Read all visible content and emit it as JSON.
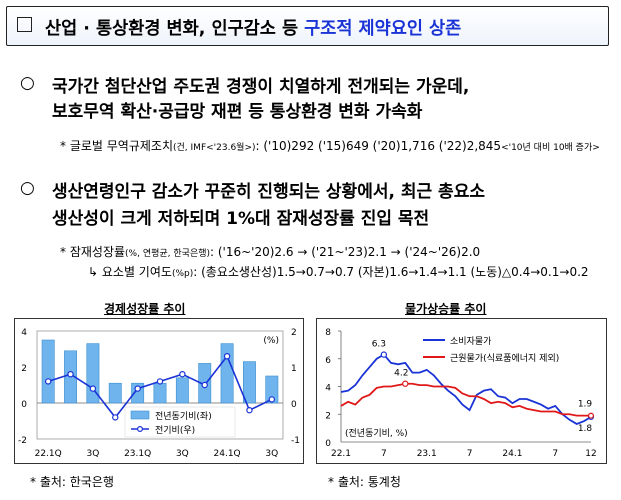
{
  "title": {
    "prefix": "산업 · 통상환경 변화, 인구감소 등 ",
    "highlight": "구조적 제약요인 상존"
  },
  "bullet1": {
    "marker": "○",
    "line1": "국가간 첨단산업 주도권 경쟁이 치열하게 전개되는 가운데,",
    "line2": "보호무역 확산·공급망 재편 등 통상환경 변화 가속화",
    "note_star": "*",
    "note_label": "글로벌 무역규제조치",
    "note_unit": "(건, IMF<'23.6월>)",
    "note_values": ": ('10)292 ('15)649 ('20)1,716 ('22)2,845",
    "note_tail": "<'10년 대비 10배 증가>"
  },
  "bullet2": {
    "marker": "○",
    "line1": "생산연령인구 감소가 꾸준히 진행되는 상황에서, 최근 총요소",
    "line2": "생산성이 크게 저하되며 1%대 잠재성장률 진입 목전",
    "note_star": "*",
    "note_label": "잠재성장률",
    "note_unit": "(%, 연평균, 한국은행)",
    "note_values": ": ('16~'20)2.6 → ('21~'23)2.1 → ('24~'26)2.0",
    "sub_note": "↳ 요소별 기여도",
    "sub_unit": "(%p)",
    "sub_values": ": (총요소생산성)1.5→0.7→0.7 (자본)1.6→1.4→1.1 (노동)△0.4→0.1→0.2"
  },
  "chart_left_title": "경제성장률 추이",
  "chart_right_title": "물가상승률 추이",
  "source_left": "* 출처: 한국은행",
  "source_right": "* 출처: 통계청",
  "chart_data": [
    {
      "type": "bar",
      "title": "경제성장률 추이",
      "left_unit": "",
      "right_unit": "(%)",
      "y_left_ticks": [
        "4",
        "2",
        "0",
        "-2"
      ],
      "y_right_ticks": [
        "2",
        "1",
        "0",
        "-1"
      ],
      "y_left_range": [
        -2,
        4
      ],
      "y_right_range": [
        -1,
        2
      ],
      "x_tick_labels": [
        "22.1Q",
        "3Q",
        "23.1Q",
        "3Q",
        "24.1Q",
        "3Q"
      ],
      "x_tick_quarters": [
        0,
        2,
        4,
        6,
        8,
        10
      ],
      "series": [
        {
          "name": "전년동기비(좌)",
          "kind": "bar",
          "axis": "left",
          "values": [
            3.5,
            2.9,
            3.3,
            1.1,
            1.1,
            1.1,
            1.4,
            2.2,
            3.3,
            2.3,
            1.5
          ]
        },
        {
          "name": "전기비(우)",
          "kind": "line",
          "axis": "right",
          "values": [
            0.6,
            0.8,
            0.4,
            -0.4,
            0.4,
            0.6,
            0.8,
            0.5,
            1.3,
            -0.2,
            0.1
          ]
        }
      ],
      "legend_position": "bottom-center"
    },
    {
      "type": "line",
      "title": "물가상승률 추이",
      "unit_label": "(전년동기비, %)",
      "y_ticks": [
        "8",
        "6",
        "4",
        "2",
        "0"
      ],
      "y_range": [
        0,
        8
      ],
      "x_tick_labels": [
        "22.1",
        "7",
        "23.1",
        "7",
        "24.1",
        "7",
        "12"
      ],
      "x_tick_months": [
        0,
        6,
        12,
        18,
        24,
        30,
        35
      ],
      "annotations": [
        "6.3",
        "4.2",
        "1.9",
        "1.8"
      ],
      "series": [
        {
          "name": "소비자물가",
          "color": "#1a33d6",
          "values": [
            3.6,
            3.7,
            4.1,
            4.8,
            5.4,
            6.0,
            6.3,
            5.7,
            5.6,
            5.7,
            5.0,
            5.0,
            5.2,
            4.8,
            4.2,
            3.7,
            3.3,
            2.7,
            2.3,
            3.4,
            3.7,
            3.8,
            3.3,
            3.2,
            2.8,
            3.1,
            3.1,
            2.9,
            2.7,
            2.4,
            2.6,
            2.0,
            1.6,
            1.3,
            1.5,
            1.8
          ]
        },
        {
          "name": "근원물가(식료품에너지 제외)",
          "color": "#e01818",
          "values": [
            2.6,
            2.9,
            2.7,
            3.2,
            3.4,
            3.9,
            4.0,
            4.0,
            4.1,
            4.2,
            4.2,
            4.1,
            4.1,
            4.0,
            4.0,
            4.0,
            3.9,
            3.5,
            3.3,
            3.3,
            3.1,
            2.8,
            2.9,
            2.8,
            2.5,
            2.6,
            2.4,
            2.3,
            2.2,
            2.2,
            2.2,
            2.0,
            2.0,
            1.9,
            1.9,
            1.9
          ]
        }
      ],
      "legend_position": "top-right"
    }
  ]
}
